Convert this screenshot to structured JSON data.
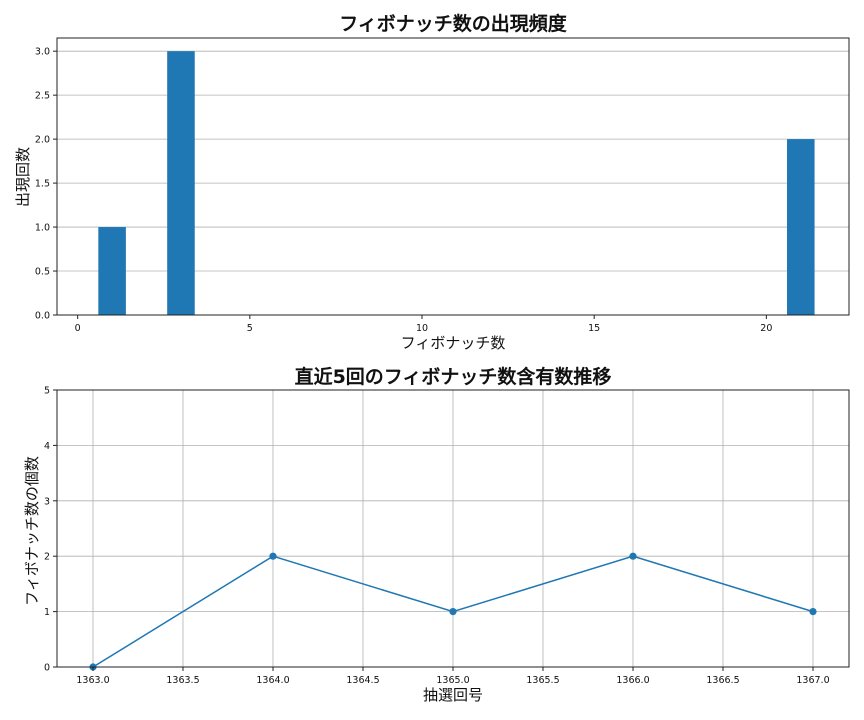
{
  "chart_data": [
    {
      "type": "bar",
      "title": "フィボナッチ数の出現頻度",
      "xlabel": "フィボナッチ数",
      "ylabel": "出現回数",
      "x": [
        1,
        3,
        21
      ],
      "values": [
        1,
        3,
        2
      ],
      "bar_width": 0.8,
      "xlim": [
        -0.6,
        22.4
      ],
      "ylim": [
        0,
        3.15
      ],
      "xticks": [
        0,
        5,
        10,
        15,
        20
      ],
      "xtick_labels": [
        "0",
        "5",
        "10",
        "15",
        "20"
      ],
      "yticks": [
        0,
        0.5,
        1.0,
        1.5,
        2.0,
        2.5,
        3.0
      ],
      "ytick_labels": [
        "0.0",
        "0.5",
        "1.0",
        "1.5",
        "2.0",
        "2.5",
        "3.0"
      ],
      "grid": "y",
      "color": "#1f77b4"
    },
    {
      "type": "line",
      "title": "直近5回のフィボナッチ数含有数推移",
      "xlabel": "抽選回号",
      "ylabel": "フィボナッチ数の個数",
      "x": [
        1363,
        1364,
        1365,
        1366,
        1367
      ],
      "y": [
        0,
        2,
        1,
        2,
        1
      ],
      "xlim": [
        1362.8,
        1367.2
      ],
      "ylim": [
        0,
        5
      ],
      "xticks": [
        1363.0,
        1363.5,
        1364.0,
        1364.5,
        1365.0,
        1365.5,
        1366.0,
        1366.5,
        1367.0
      ],
      "xtick_labels": [
        "1363.0",
        "1363.5",
        "1364.0",
        "1364.5",
        "1365.0",
        "1365.5",
        "1366.0",
        "1366.5",
        "1367.0"
      ],
      "yticks": [
        0,
        1,
        2,
        3,
        4,
        5
      ],
      "ytick_labels": [
        "0",
        "1",
        "2",
        "3",
        "4",
        "5"
      ],
      "grid": "both",
      "marker": "circle",
      "color": "#1f77b4"
    }
  ]
}
